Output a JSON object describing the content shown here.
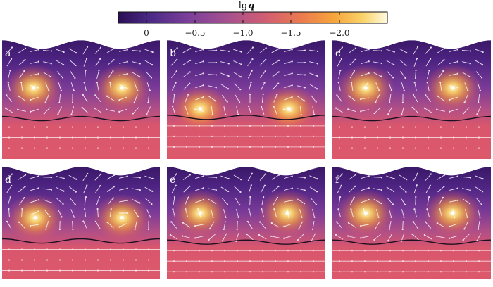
{
  "colorbar": {
    "title": "lg",
    "title_symbol": "q",
    "ticks": [
      "0",
      "−0.5",
      "−1.0",
      "−1.5",
      "−2.0"
    ],
    "colors": [
      "#2a0f55",
      "#4b2a86",
      "#7b3f9a",
      "#a4508f",
      "#cf5c73",
      "#ec7a4f",
      "#f6a43b",
      "#fad36b",
      "#fffbe0"
    ]
  },
  "panels": [
    {
      "label": "a"
    },
    {
      "label": "b"
    },
    {
      "label": "c"
    },
    {
      "label": "d"
    },
    {
      "label": "e"
    },
    {
      "label": "f"
    }
  ]
}
